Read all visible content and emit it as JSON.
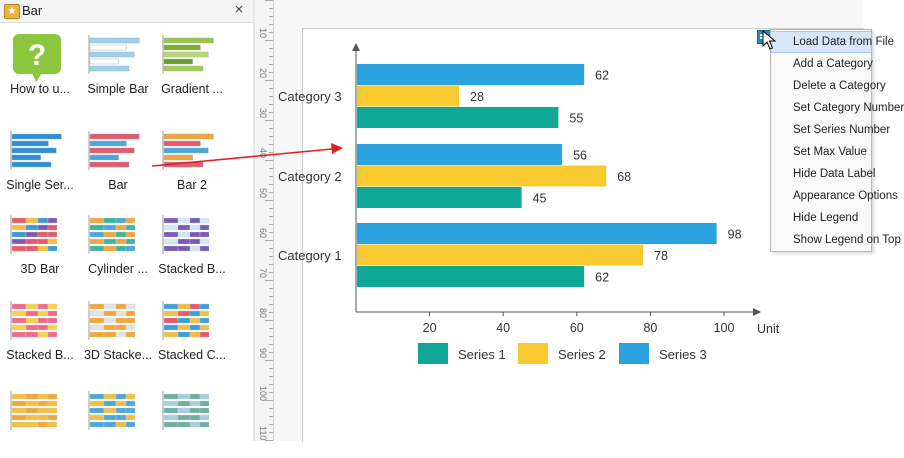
{
  "panel": {
    "title": "Bar",
    "close_label": "×",
    "tiles": [
      {
        "label": "How to u...",
        "icon": "help-question-icon"
      },
      {
        "label": "Simple Bar",
        "icon": "simple-bar-thumbnail"
      },
      {
        "label": "Gradient ...",
        "icon": "gradient-bar-thumbnail"
      },
      {
        "label": "Single Ser...",
        "icon": "single-series-bar-thumbnail"
      },
      {
        "label": "Bar",
        "icon": "bar-thumbnail"
      },
      {
        "label": "Bar 2",
        "icon": "bar-2-thumbnail"
      },
      {
        "label": "3D Bar",
        "icon": "3d-bar-thumbnail"
      },
      {
        "label": "Cylinder ...",
        "icon": "cylinder-bar-thumbnail"
      },
      {
        "label": "Stacked B...",
        "icon": "stacked-bar-thumbnail"
      },
      {
        "label": "Stacked B...",
        "icon": "stacked-bar-2-thumbnail"
      },
      {
        "label": "3D Stacke...",
        "icon": "3d-stacked-bar-thumbnail"
      },
      {
        "label": "Stacked C...",
        "icon": "stacked-cylinder-thumbnail"
      },
      {
        "label": "",
        "icon": "stacked-bar-3-thumbnail"
      },
      {
        "label": "",
        "icon": "stacked-bar-4-thumbnail"
      },
      {
        "label": "",
        "icon": "stacked-bar-5-thumbnail"
      }
    ]
  },
  "ruler": {
    "labels": [
      "10",
      "20",
      "30",
      "40",
      "50",
      "60",
      "70",
      "80",
      "90",
      "100",
      "110"
    ]
  },
  "chart_data": {
    "type": "bar",
    "orientation": "horizontal",
    "categories": [
      "Category 1",
      "Category 2",
      "Category 3"
    ],
    "series": [
      {
        "name": "Series 1",
        "color": "#0fa896",
        "values": [
          62,
          45,
          55
        ]
      },
      {
        "name": "Series 2",
        "color": "#f9c930",
        "values": [
          78,
          68,
          28
        ]
      },
      {
        "name": "Series 3",
        "color": "#2aa3df",
        "values": [
          98,
          56,
          62
        ]
      }
    ],
    "x_ticks": [
      "20",
      "40",
      "60",
      "80",
      "100"
    ],
    "xlim": [
      0,
      105
    ],
    "unit_label": "Unit",
    "legend_position": "bottom"
  },
  "menu": {
    "items": [
      "Load Data from File",
      "Add a Category",
      "Delete a Category",
      "Set Category Number",
      "Set Series Number",
      "Set Max Value",
      "Hide Data Label",
      "Appearance Options",
      "Hide Legend",
      "Show Legend on Top"
    ]
  },
  "colors": {
    "accent": "#1f8fc9",
    "arrow": "#e02020",
    "menu_highlight": "#d6e6f8"
  }
}
